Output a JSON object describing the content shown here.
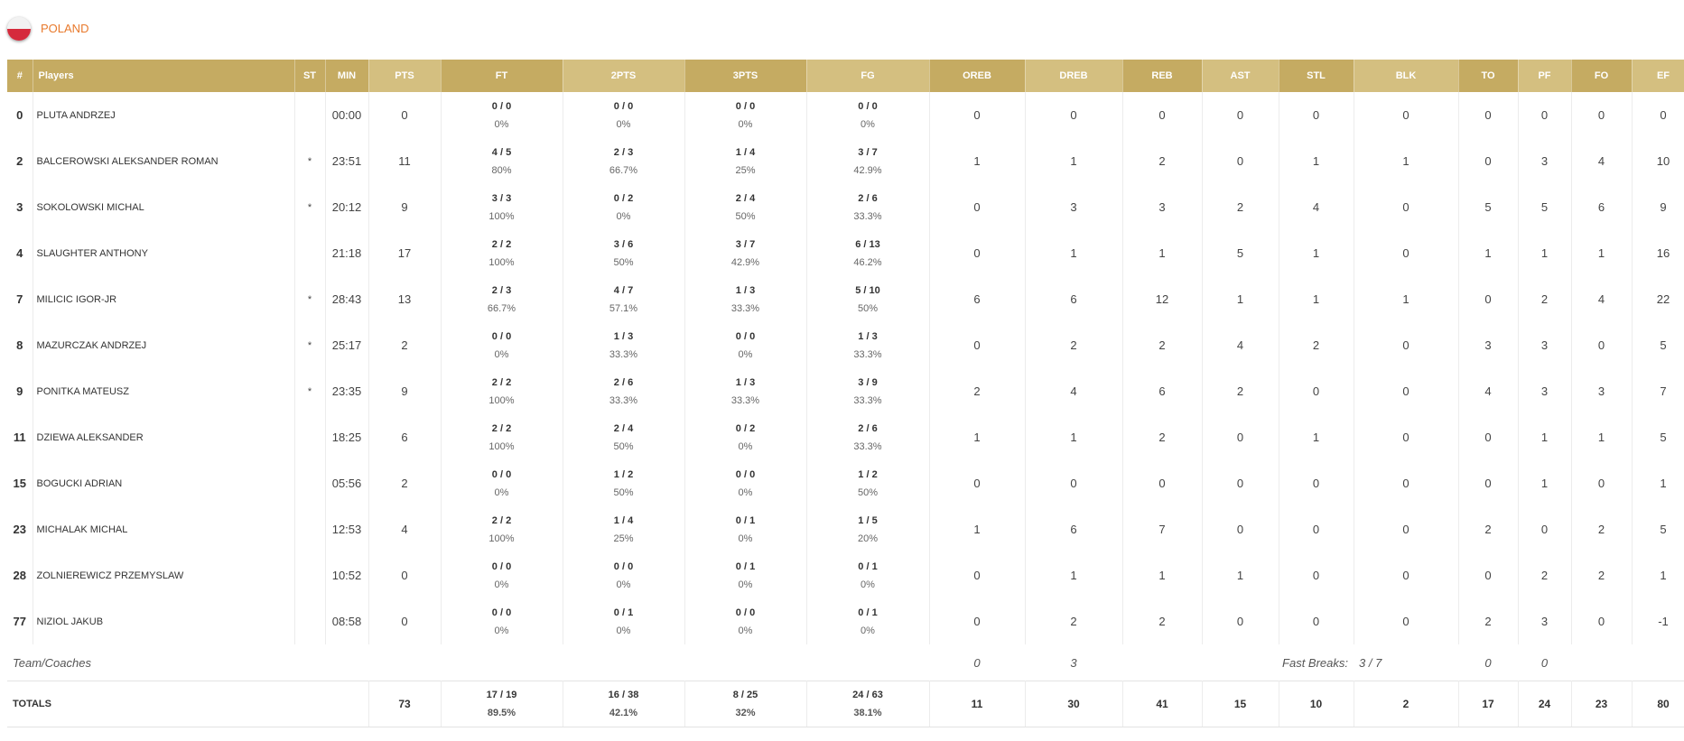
{
  "team": {
    "name": "POLAND"
  },
  "headers": [
    "#",
    "Players",
    "ST",
    "MIN",
    "PTS",
    "FT",
    "2PTS",
    "3PTS",
    "FG",
    "OREB",
    "DREB",
    "REB",
    "AST",
    "STL",
    "BLK",
    "TO",
    "PF",
    "FO",
    "EF"
  ],
  "players": [
    {
      "num": "0",
      "name": "PLUTA ANDRZEJ",
      "st": "",
      "min": "00:00",
      "pts": "0",
      "ft": "0 / 0",
      "ft_pct": "0%",
      "p2": "0 / 0",
      "p2_pct": "0%",
      "p3": "0 / 0",
      "p3_pct": "0%",
      "fg": "0 / 0",
      "fg_pct": "0%",
      "oreb": "0",
      "dreb": "0",
      "reb": "0",
      "ast": "0",
      "stl": "0",
      "blk": "0",
      "to": "0",
      "pf": "0",
      "fo": "0",
      "ef": "0"
    },
    {
      "num": "2",
      "name": "BALCEROWSKI ALEKSANDER ROMAN",
      "st": "*",
      "min": "23:51",
      "pts": "11",
      "ft": "4 / 5",
      "ft_pct": "80%",
      "p2": "2 / 3",
      "p2_pct": "66.7%",
      "p3": "1 / 4",
      "p3_pct": "25%",
      "fg": "3 / 7",
      "fg_pct": "42.9%",
      "oreb": "1",
      "dreb": "1",
      "reb": "2",
      "ast": "0",
      "stl": "1",
      "blk": "1",
      "to": "0",
      "pf": "3",
      "fo": "4",
      "ef": "10"
    },
    {
      "num": "3",
      "name": "SOKOLOWSKI MICHAL",
      "st": "*",
      "min": "20:12",
      "pts": "9",
      "ft": "3 / 3",
      "ft_pct": "100%",
      "p2": "0 / 2",
      "p2_pct": "0%",
      "p3": "2 / 4",
      "p3_pct": "50%",
      "fg": "2 / 6",
      "fg_pct": "33.3%",
      "oreb": "0",
      "dreb": "3",
      "reb": "3",
      "ast": "2",
      "stl": "4",
      "blk": "0",
      "to": "5",
      "pf": "5",
      "fo": "6",
      "ef": "9"
    },
    {
      "num": "4",
      "name": "SLAUGHTER ANTHONY",
      "st": "",
      "min": "21:18",
      "pts": "17",
      "ft": "2 / 2",
      "ft_pct": "100%",
      "p2": "3 / 6",
      "p2_pct": "50%",
      "p3": "3 / 7",
      "p3_pct": "42.9%",
      "fg": "6 / 13",
      "fg_pct": "46.2%",
      "oreb": "0",
      "dreb": "1",
      "reb": "1",
      "ast": "5",
      "stl": "1",
      "blk": "0",
      "to": "1",
      "pf": "1",
      "fo": "1",
      "ef": "16"
    },
    {
      "num": "7",
      "name": "MILICIC IGOR-JR",
      "st": "*",
      "min": "28:43",
      "pts": "13",
      "ft": "2 / 3",
      "ft_pct": "66.7%",
      "p2": "4 / 7",
      "p2_pct": "57.1%",
      "p3": "1 / 3",
      "p3_pct": "33.3%",
      "fg": "5 / 10",
      "fg_pct": "50%",
      "oreb": "6",
      "dreb": "6",
      "reb": "12",
      "ast": "1",
      "stl": "1",
      "blk": "1",
      "to": "0",
      "pf": "2",
      "fo": "4",
      "ef": "22"
    },
    {
      "num": "8",
      "name": "MAZURCZAK ANDRZEJ",
      "st": "*",
      "min": "25:17",
      "pts": "2",
      "ft": "0 / 0",
      "ft_pct": "0%",
      "p2": "1 / 3",
      "p2_pct": "33.3%",
      "p3": "0 / 0",
      "p3_pct": "0%",
      "fg": "1 / 3",
      "fg_pct": "33.3%",
      "oreb": "0",
      "dreb": "2",
      "reb": "2",
      "ast": "4",
      "stl": "2",
      "blk": "0",
      "to": "3",
      "pf": "3",
      "fo": "0",
      "ef": "5"
    },
    {
      "num": "9",
      "name": "PONITKA MATEUSZ",
      "st": "*",
      "min": "23:35",
      "pts": "9",
      "ft": "2 / 2",
      "ft_pct": "100%",
      "p2": "2 / 6",
      "p2_pct": "33.3%",
      "p3": "1 / 3",
      "p3_pct": "33.3%",
      "fg": "3 / 9",
      "fg_pct": "33.3%",
      "oreb": "2",
      "dreb": "4",
      "reb": "6",
      "ast": "2",
      "stl": "0",
      "blk": "0",
      "to": "4",
      "pf": "3",
      "fo": "3",
      "ef": "7"
    },
    {
      "num": "11",
      "name": "DZIEWA ALEKSANDER",
      "st": "",
      "min": "18:25",
      "pts": "6",
      "ft": "2 / 2",
      "ft_pct": "100%",
      "p2": "2 / 4",
      "p2_pct": "50%",
      "p3": "0 / 2",
      "p3_pct": "0%",
      "fg": "2 / 6",
      "fg_pct": "33.3%",
      "oreb": "1",
      "dreb": "1",
      "reb": "2",
      "ast": "0",
      "stl": "1",
      "blk": "0",
      "to": "0",
      "pf": "1",
      "fo": "1",
      "ef": "5"
    },
    {
      "num": "15",
      "name": "BOGUCKI ADRIAN",
      "st": "",
      "min": "05:56",
      "pts": "2",
      "ft": "0 / 0",
      "ft_pct": "0%",
      "p2": "1 / 2",
      "p2_pct": "50%",
      "p3": "0 / 0",
      "p3_pct": "0%",
      "fg": "1 / 2",
      "fg_pct": "50%",
      "oreb": "0",
      "dreb": "0",
      "reb": "0",
      "ast": "0",
      "stl": "0",
      "blk": "0",
      "to": "0",
      "pf": "1",
      "fo": "0",
      "ef": "1"
    },
    {
      "num": "23",
      "name": "MICHALAK MICHAL",
      "st": "",
      "min": "12:53",
      "pts": "4",
      "ft": "2 / 2",
      "ft_pct": "100%",
      "p2": "1 / 4",
      "p2_pct": "25%",
      "p3": "0 / 1",
      "p3_pct": "0%",
      "fg": "1 / 5",
      "fg_pct": "20%",
      "oreb": "1",
      "dreb": "6",
      "reb": "7",
      "ast": "0",
      "stl": "0",
      "blk": "0",
      "to": "2",
      "pf": "0",
      "fo": "2",
      "ef": "5"
    },
    {
      "num": "28",
      "name": "ZOLNIEREWICZ PRZEMYSLAW",
      "st": "",
      "min": "10:52",
      "pts": "0",
      "ft": "0 / 0",
      "ft_pct": "0%",
      "p2": "0 / 0",
      "p2_pct": "0%",
      "p3": "0 / 1",
      "p3_pct": "0%",
      "fg": "0 / 1",
      "fg_pct": "0%",
      "oreb": "0",
      "dreb": "1",
      "reb": "1",
      "ast": "1",
      "stl": "0",
      "blk": "0",
      "to": "0",
      "pf": "2",
      "fo": "2",
      "ef": "1"
    },
    {
      "num": "77",
      "name": "NIZIOL JAKUB",
      "st": "",
      "min": "08:58",
      "pts": "0",
      "ft": "0 / 0",
      "ft_pct": "0%",
      "p2": "0 / 1",
      "p2_pct": "0%",
      "p3": "0 / 0",
      "p3_pct": "0%",
      "fg": "0 / 1",
      "fg_pct": "0%",
      "oreb": "0",
      "dreb": "2",
      "reb": "2",
      "ast": "0",
      "stl": "0",
      "blk": "0",
      "to": "2",
      "pf": "3",
      "fo": "0",
      "ef": "-1"
    }
  ],
  "team_coaches": {
    "label": "Team/Coaches",
    "oreb": "0",
    "dreb": "3",
    "fast_breaks_label": "Fast Breaks:",
    "fast_breaks": "3 / 7",
    "to": "0",
    "pf": "0"
  },
  "totals": {
    "label": "TOTALS",
    "pts": "73",
    "ft": "17 / 19",
    "ft_pct": "89.5%",
    "p2": "16 / 38",
    "p2_pct": "42.1%",
    "p3": "8 / 25",
    "p3_pct": "32%",
    "fg": "24 / 63",
    "fg_pct": "38.1%",
    "oreb": "11",
    "dreb": "30",
    "reb": "41",
    "ast": "15",
    "stl": "10",
    "blk": "2",
    "to": "17",
    "pf": "24",
    "fo": "23",
    "ef": "80"
  },
  "colors": {
    "header_dark": "#c5ab62",
    "header_light": "#d4bf80",
    "team_name": "#e8792c",
    "flag_red": "#d52a3c"
  }
}
